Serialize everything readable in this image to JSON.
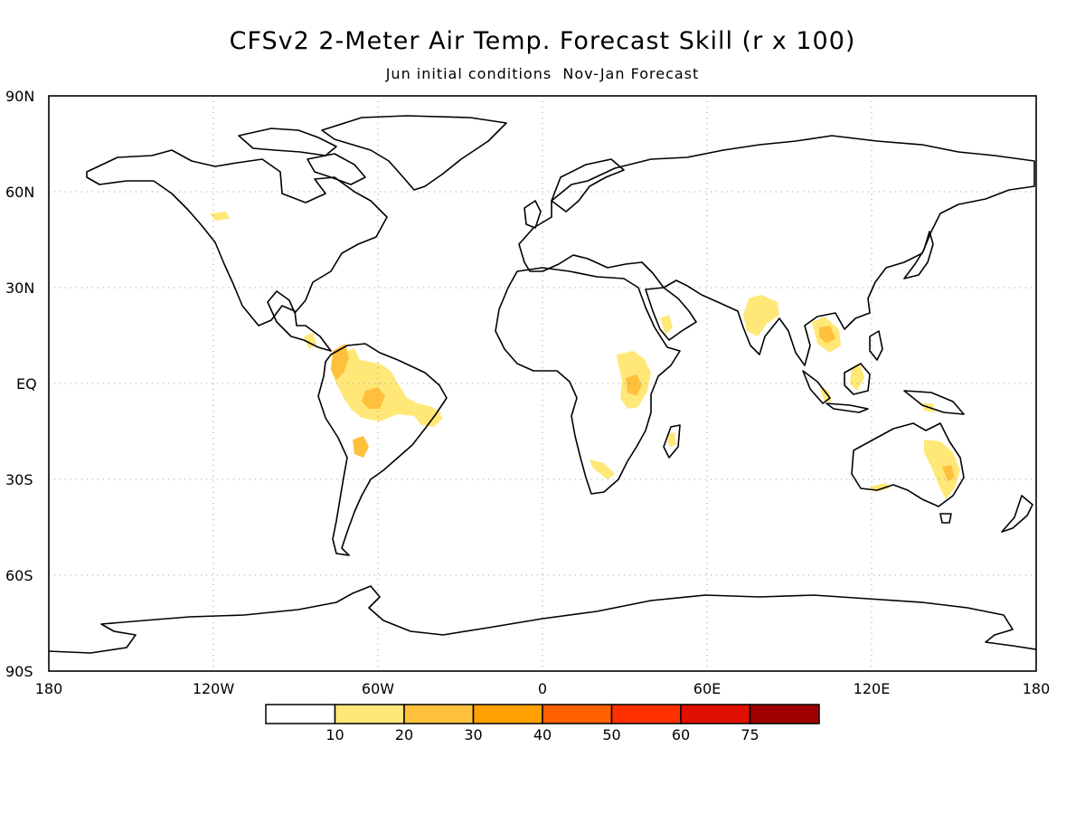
{
  "title": "CFSv2 2-Meter Air Temp. Forecast Skill (r x 100)",
  "subtitle": "Jun initial conditions  Nov-Jan Forecast",
  "chart_data": {
    "type": "heatmap",
    "title": "CFSv2 2-Meter Air Temp. Forecast Skill (r x 100)",
    "subtitle": "Jun initial conditions  Nov-Jan Forecast",
    "projection": "cylindrical equidistant",
    "lon_range": [
      -180,
      180
    ],
    "lat_range": [
      -90,
      90
    ],
    "grid": "dotted",
    "y_ticks": [
      {
        "lat": 90,
        "label": "90N"
      },
      {
        "lat": 60,
        "label": "60N"
      },
      {
        "lat": 30,
        "label": "30N"
      },
      {
        "lat": 0,
        "label": "EQ"
      },
      {
        "lat": -30,
        "label": "30S"
      },
      {
        "lat": -60,
        "label": "60S"
      },
      {
        "lat": -90,
        "label": "90S"
      }
    ],
    "x_ticks": [
      {
        "lon": -180,
        "label": "180"
      },
      {
        "lon": -120,
        "label": "120W"
      },
      {
        "lon": -60,
        "label": "60W"
      },
      {
        "lon": 0,
        "label": "0"
      },
      {
        "lon": 60,
        "label": "60E"
      },
      {
        "lon": 120,
        "label": "120E"
      },
      {
        "lon": 180,
        "label": "180"
      }
    ],
    "colorbar": {
      "placement": "bottom",
      "bins": [
        {
          "color": "#ffffff"
        },
        {
          "color": "#ffe878"
        },
        {
          "color": "#ffc03c"
        },
        {
          "color": "#ffa000"
        },
        {
          "color": "#ff6000"
        },
        {
          "color": "#ff3000"
        },
        {
          "color": "#e01000"
        },
        {
          "color": "#a00000"
        }
      ],
      "labels": [
        "10",
        "20",
        "30",
        "40",
        "50",
        "60",
        "75"
      ]
    }
  }
}
